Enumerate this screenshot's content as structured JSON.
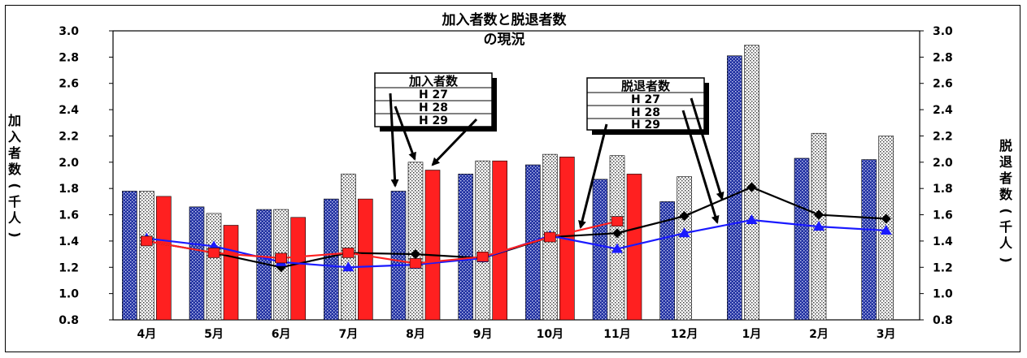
{
  "chart_data": {
    "type": "bar",
    "title": [
      "加入者数と脱退者数",
      "の現況"
    ],
    "ylabel_left": "加入者数(千人)",
    "ylabel_right": "脱退者数(千人)",
    "categories": [
      "4月",
      "5月",
      "6月",
      "7月",
      "8月",
      "9月",
      "10月",
      "11月",
      "12月",
      "1月",
      "2月",
      "3月"
    ],
    "ylim": [
      0.8,
      3.0
    ],
    "yticks": [
      "0.8",
      "1.0",
      "1.2",
      "1.4",
      "1.6",
      "1.8",
      "2.0",
      "2.2",
      "2.4",
      "2.6",
      "2.8",
      "3.0"
    ],
    "grid": false,
    "bar_series": [
      {
        "group": "加入者数",
        "name": "H 27",
        "color": "#1f2fa0",
        "pattern": "blue-dots",
        "values": [
          1.78,
          1.66,
          1.64,
          1.72,
          1.78,
          1.91,
          1.98,
          1.87,
          1.7,
          2.81,
          2.03,
          2.02
        ]
      },
      {
        "group": "加入者数",
        "name": "H 28",
        "color": "#e6e6e6",
        "pattern": "stipple",
        "values": [
          1.78,
          1.61,
          1.64,
          1.91,
          2.0,
          2.01,
          2.06,
          2.05,
          1.89,
          2.89,
          2.22,
          2.2
        ]
      },
      {
        "group": "加入者数",
        "name": "H 29",
        "color": "#ff2020",
        "pattern": "solid",
        "values": [
          1.74,
          1.52,
          1.58,
          1.72,
          1.94,
          2.01,
          2.04,
          1.91,
          null,
          null,
          null,
          null
        ]
      }
    ],
    "line_series": [
      {
        "group": "脱退者数",
        "name": "H 27",
        "color": "#000000",
        "marker": "diamond",
        "values": [
          1.4,
          1.31,
          1.2,
          1.31,
          1.3,
          1.27,
          1.43,
          1.46,
          1.59,
          1.81,
          1.6,
          1.57
        ]
      },
      {
        "group": "脱退者数",
        "name": "H 28",
        "color": "#1a1aff",
        "marker": "triangle",
        "values": [
          1.42,
          1.36,
          1.24,
          1.2,
          1.22,
          1.27,
          1.44,
          1.34,
          1.46,
          1.56,
          1.51,
          1.48
        ]
      },
      {
        "group": "脱退者数",
        "name": "H 29",
        "color": "#ff2020",
        "marker": "square",
        "values": [
          1.4,
          1.31,
          1.27,
          1.31,
          1.23,
          1.28,
          1.43,
          1.55,
          null,
          null,
          null,
          null
        ]
      }
    ],
    "legends": [
      {
        "title": "加入者数",
        "items": [
          "H 27",
          "H 28",
          "H 29"
        ]
      },
      {
        "title": "脱退者数",
        "items": [
          "H 27",
          "H 28",
          "H 29"
        ]
      }
    ]
  }
}
